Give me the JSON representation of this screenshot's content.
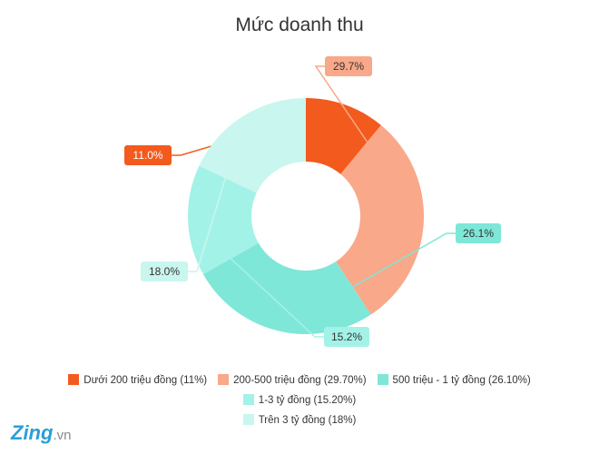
{
  "chart_data": {
    "type": "pie",
    "title": "Mức doanh thu",
    "slices": [
      {
        "legend": "Dưới 200 triệu đồng (11%)",
        "value": 11.0,
        "label": "11.0%",
        "color": "#f35a1e"
      },
      {
        "legend": "200-500 triệu đồng (29.70%)",
        "value": 29.7,
        "label": "29.7%",
        "color": "#f9a889"
      },
      {
        "legend": "500 triệu - 1 tỷ đồng (26.10%)",
        "value": 26.1,
        "label": "26.1%",
        "color": "#7ee7d8"
      },
      {
        "legend": "1-3 tỷ đồng (15.20%)",
        "value": 15.2,
        "label": "15.2%",
        "color": "#a3f2e7"
      },
      {
        "legend": "Trên 3 tỷ đồng (18%)",
        "value": 18.0,
        "label": "18.0%",
        "color": "#c9f6ee"
      }
    ],
    "start_angle_deg": 270,
    "legend_position": "bottom"
  },
  "watermark": {
    "brand": "Zing",
    "suffix": ".vn"
  }
}
